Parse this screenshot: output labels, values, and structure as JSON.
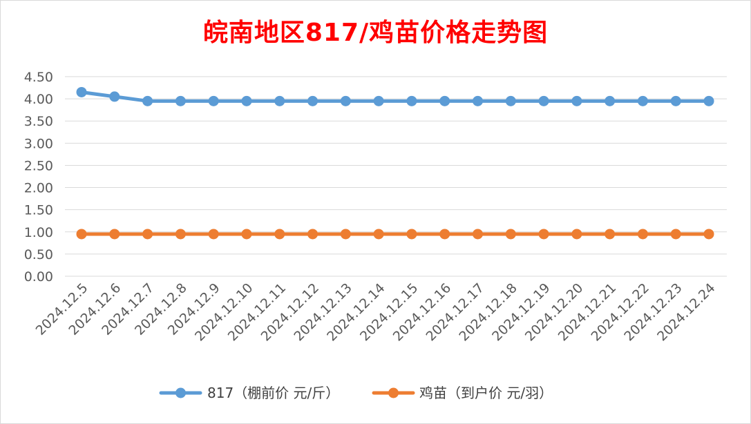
{
  "chart_data": {
    "type": "line",
    "title": "皖南地区817/鸡苗价格走势图",
    "categories": [
      "2024.12.5",
      "2024.12.6",
      "2024.12.7",
      "2024.12.8",
      "2024.12.9",
      "2024.12.10",
      "2024.12.11",
      "2024.12.12",
      "2024.12.13",
      "2024.12.14",
      "2024.12.15",
      "2024.12.16",
      "2024.12.17",
      "2024.12.18",
      "2024.12.19",
      "2024.12.20",
      "2024.12.21",
      "2024.12.22",
      "2024.12.23",
      "2024.12.24"
    ],
    "series": [
      {
        "name": "817（棚前价 元/斤）",
        "color": "#5b9bd5",
        "values": [
          4.15,
          4.05,
          3.95,
          3.95,
          3.95,
          3.95,
          3.95,
          3.95,
          3.95,
          3.95,
          3.95,
          3.95,
          3.95,
          3.95,
          3.95,
          3.95,
          3.95,
          3.95,
          3.95,
          3.95
        ]
      },
      {
        "name": "鸡苗（到户价 元/羽）",
        "color": "#ed7d31",
        "values": [
          0.95,
          0.95,
          0.95,
          0.95,
          0.95,
          0.95,
          0.95,
          0.95,
          0.95,
          0.95,
          0.95,
          0.95,
          0.95,
          0.95,
          0.95,
          0.95,
          0.95,
          0.95,
          0.95,
          0.95
        ]
      }
    ],
    "yticks": [
      "0.00",
      "0.50",
      "1.00",
      "1.50",
      "2.00",
      "2.50",
      "3.00",
      "3.50",
      "4.00",
      "4.50"
    ],
    "ylim": [
      0,
      4.5
    ],
    "grid": true,
    "legend_position": "bottom",
    "title_color": "#ff0000"
  }
}
